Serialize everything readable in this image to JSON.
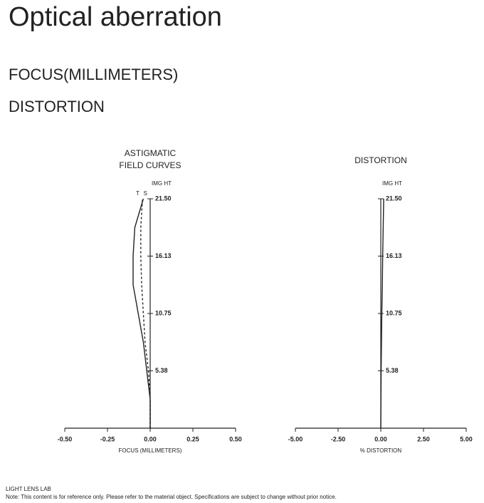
{
  "title": "Optical aberration",
  "headings": [
    "FOCUS(MILLIMETERS)",
    "DISTORTION"
  ],
  "footer": {
    "brand": "LIGHT LENS LAB",
    "note": "Note: This content is for reference only. Please refer to the material object. Specifications are subject to change without prior notice."
  },
  "chart_data": [
    {
      "type": "line",
      "title": [
        "ASTIGMATIC",
        "FIELD CURVES"
      ],
      "xlabel": "FOCUS (MILLIMETERS)",
      "ylabel": "IMG HT",
      "y": [
        0,
        2.69,
        5.38,
        8.06,
        10.75,
        13.44,
        16.13,
        18.81,
        21.5
      ],
      "series": [
        {
          "name": "T",
          "color": "#222222",
          "style": "solid",
          "values": [
            0,
            0,
            -0.02,
            -0.04,
            -0.07,
            -0.1,
            -0.1,
            -0.09,
            -0.04
          ]
        },
        {
          "name": "S",
          "color": "#222222",
          "style": "dashed",
          "values": [
            0,
            0,
            -0.01,
            -0.03,
            -0.04,
            -0.05,
            -0.055,
            -0.055,
            -0.045
          ]
        }
      ],
      "xlim": [
        -0.5,
        0.5
      ],
      "xticks": [
        {
          "value": -0.5,
          "label": "-0.50"
        },
        {
          "value": -0.25,
          "label": "-0.25"
        },
        {
          "value": 0,
          "label": "0.00"
        },
        0.25,
        {
          "value": 0.5,
          "label": "0.50"
        }
      ],
      "ylim": [
        0,
        21.5
      ],
      "yticks": [
        5.38,
        10.75,
        16.13,
        {
          "value": 21.5,
          "label": "21.50"
        }
      ]
    },
    {
      "type": "line",
      "title": [
        "DISTORTION"
      ],
      "xlabel": "% DISTORTION",
      "ylabel": "IMG HT",
      "y": [
        0,
        2.69,
        5.38,
        8.06,
        10.75,
        13.44,
        16.13,
        18.81,
        21.5
      ],
      "series": [
        {
          "color": "#222222",
          "style": "solid",
          "values": [
            0,
            0.01,
            0.02,
            0.04,
            0.06,
            0.09,
            0.11,
            0.14,
            0.17
          ]
        }
      ],
      "xlim": [
        -5,
        5
      ],
      "xticks": [
        {
          "value": -5,
          "label": "-5.00"
        },
        {
          "value": -2.5,
          "label": "-2.50"
        },
        {
          "value": 0,
          "label": "0.00"
        },
        {
          "value": 2.5,
          "label": "2.50"
        },
        {
          "value": 5,
          "label": "5.00"
        }
      ],
      "ylim": [
        0,
        21.5
      ],
      "yticks": [
        5.38,
        10.75,
        16.13,
        {
          "value": 21.5,
          "label": "21.50"
        }
      ]
    }
  ]
}
